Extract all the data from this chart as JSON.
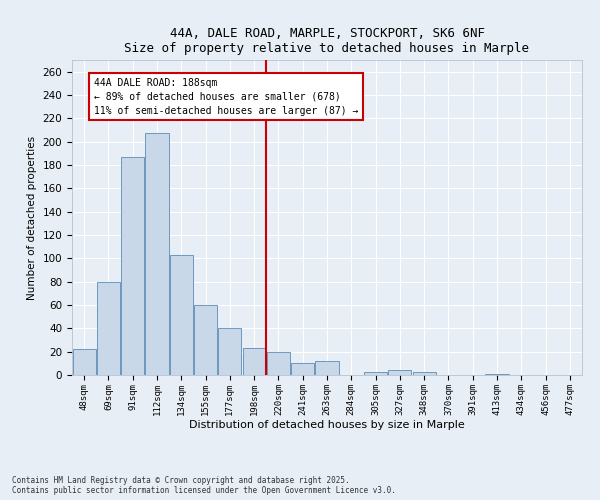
{
  "title1": "44A, DALE ROAD, MARPLE, STOCKPORT, SK6 6NF",
  "title2": "Size of property relative to detached houses in Marple",
  "xlabel": "Distribution of detached houses by size in Marple",
  "ylabel": "Number of detached properties",
  "categories": [
    "48sqm",
    "69sqm",
    "91sqm",
    "112sqm",
    "134sqm",
    "155sqm",
    "177sqm",
    "198sqm",
    "220sqm",
    "241sqm",
    "263sqm",
    "284sqm",
    "305sqm",
    "327sqm",
    "348sqm",
    "370sqm",
    "391sqm",
    "413sqm",
    "434sqm",
    "456sqm",
    "477sqm"
  ],
  "values": [
    22,
    80,
    187,
    207,
    103,
    60,
    40,
    23,
    20,
    10,
    12,
    0,
    3,
    4,
    3,
    0,
    0,
    1,
    0,
    0,
    0
  ],
  "bar_color": "#c8d8e8",
  "bar_edge_color": "#5b8db8",
  "vline_color": "#cc0000",
  "annotation_box_color": "#ffffff",
  "annotation_box_edge": "#cc0000",
  "background_color": "#e8eef5",
  "grid_color": "#ffffff",
  "ylim": [
    0,
    270
  ],
  "yticks": [
    0,
    20,
    40,
    60,
    80,
    100,
    120,
    140,
    160,
    180,
    200,
    220,
    240,
    260
  ],
  "footer1": "Contains HM Land Registry data © Crown copyright and database right 2025.",
  "footer2": "Contains public sector information licensed under the Open Government Licence v3.0."
}
